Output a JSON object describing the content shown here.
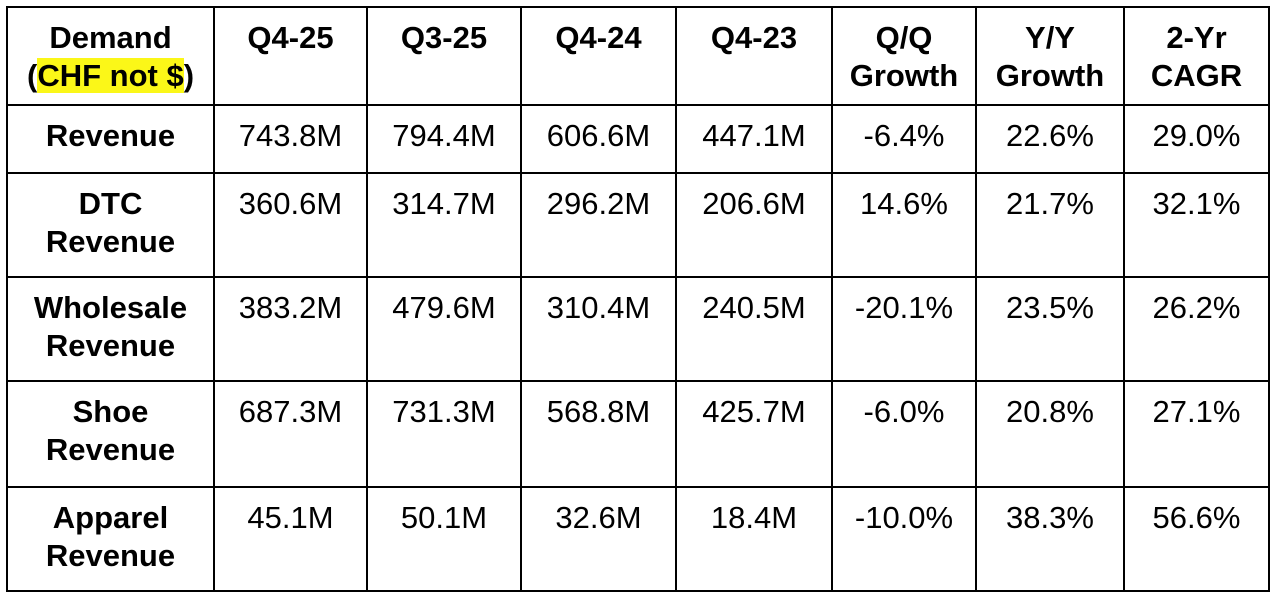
{
  "table": {
    "header": {
      "corner": {
        "line1": "Demand",
        "line2_open": "(",
        "line2_highlight": "CHF not $",
        "line2_close": ")"
      },
      "columns": [
        [
          "Q4-25"
        ],
        [
          "Q3-25"
        ],
        [
          "Q4-24"
        ],
        [
          "Q4-23"
        ],
        [
          "Q/Q",
          "Growth"
        ],
        [
          "Y/Y",
          "Growth"
        ],
        [
          "2-Yr",
          "CAGR"
        ]
      ]
    },
    "rows": [
      {
        "label": [
          "Revenue"
        ],
        "values": [
          "743.8M",
          "794.4M",
          "606.6M",
          "447.1M",
          "-6.4%",
          "22.6%",
          "29.0%"
        ]
      },
      {
        "label": [
          "DTC",
          "Revenue"
        ],
        "values": [
          "360.6M",
          "314.7M",
          "296.2M",
          "206.6M",
          "14.6%",
          "21.7%",
          "32.1%"
        ]
      },
      {
        "label": [
          "Wholesale",
          "Revenue"
        ],
        "values": [
          "383.2M",
          "479.6M",
          "310.4M",
          "240.5M",
          "-20.1%",
          "23.5%",
          "26.2%"
        ]
      },
      {
        "label": [
          "Shoe",
          "Revenue"
        ],
        "values": [
          "687.3M",
          "731.3M",
          "568.8M",
          "425.7M",
          "-6.0%",
          "20.8%",
          "27.1%"
        ]
      },
      {
        "label": [
          "Apparel",
          "Revenue"
        ],
        "values": [
          "45.1M",
          "50.1M",
          "32.6M",
          "18.4M",
          "-10.0%",
          "38.3%",
          "56.6%"
        ]
      }
    ],
    "colors": {
      "highlight": "#fbf718",
      "border": "#000000",
      "text": "#000000"
    }
  }
}
